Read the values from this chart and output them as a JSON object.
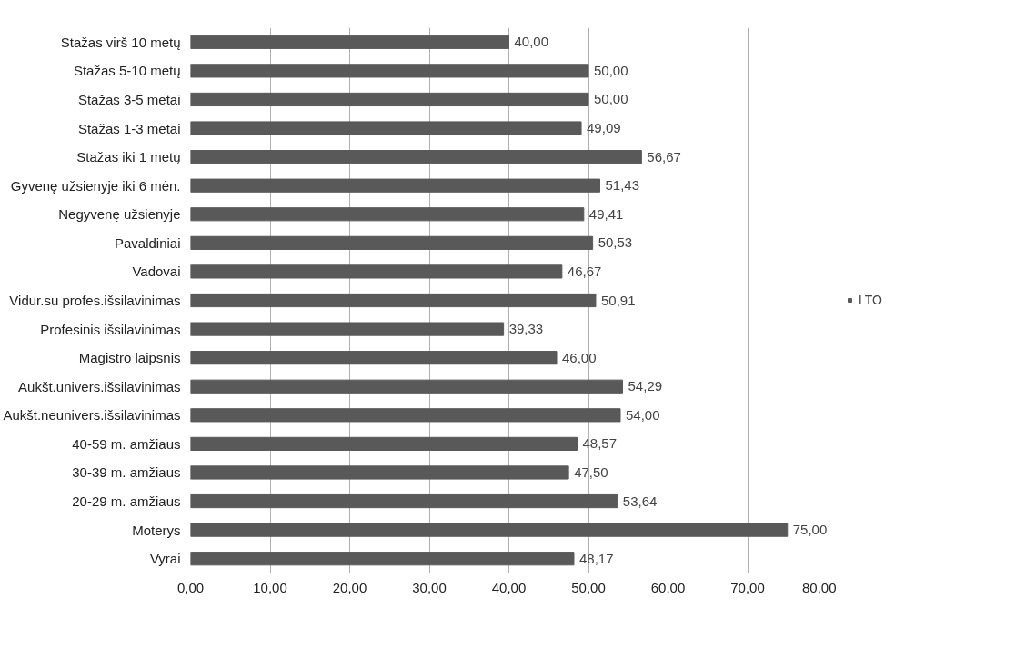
{
  "chart_data": {
    "type": "bar",
    "orientation": "horizontal",
    "categories": [
      "Stažas virš 10 metų",
      "Stažas 5-10 metų",
      "Stažas 3-5 metai",
      "Stažas 1-3 metai",
      "Stažas iki 1 metų",
      "Gyvenę užsienyje iki 6 mėn.",
      "Negyvenę užsienyje",
      "Pavaldiniai",
      "Vadovai",
      "Vidur.su profes.išsilavinimas",
      "Profesinis išsilavinimas",
      "Magistro laipsnis",
      "Aukšt.univers.išsilavinimas",
      "Aukšt.neunivers.išsilavinimas",
      "40-59 m. amžiaus",
      "30-39 m. amžiaus",
      "20-29 m. amžiaus",
      "Moterys",
      "Vyrai"
    ],
    "series": [
      {
        "name": "LTO",
        "color": "#595959",
        "values": [
          40.0,
          50.0,
          50.0,
          49.09,
          56.67,
          51.43,
          49.41,
          50.53,
          46.67,
          50.91,
          39.33,
          46.0,
          54.29,
          54.0,
          48.57,
          47.5,
          53.64,
          75.0,
          48.17
        ],
        "value_labels": [
          "40,00",
          "50,00",
          "50,00",
          "49,09",
          "56,67",
          "51,43",
          "49,41",
          "50,53",
          "46,67",
          "50,91",
          "39,33",
          "46,00",
          "54,29",
          "54,00",
          "48,57",
          "47,50",
          "53,64",
          "75,00",
          "48,17"
        ]
      }
    ],
    "xlim": [
      0,
      80
    ],
    "xticks": [
      {
        "value": 0,
        "label": "0,00"
      },
      {
        "value": 10,
        "label": "10,00"
      },
      {
        "value": 20,
        "label": "20,00"
      },
      {
        "value": 30,
        "label": "30,00"
      },
      {
        "value": 40,
        "label": "40,00"
      },
      {
        "value": 50,
        "label": "50,00"
      },
      {
        "value": 60,
        "label": "60,00"
      },
      {
        "value": 70,
        "label": "70,00"
      },
      {
        "value": 80,
        "label": "80,00"
      }
    ],
    "grid": "x",
    "legend": "right"
  }
}
